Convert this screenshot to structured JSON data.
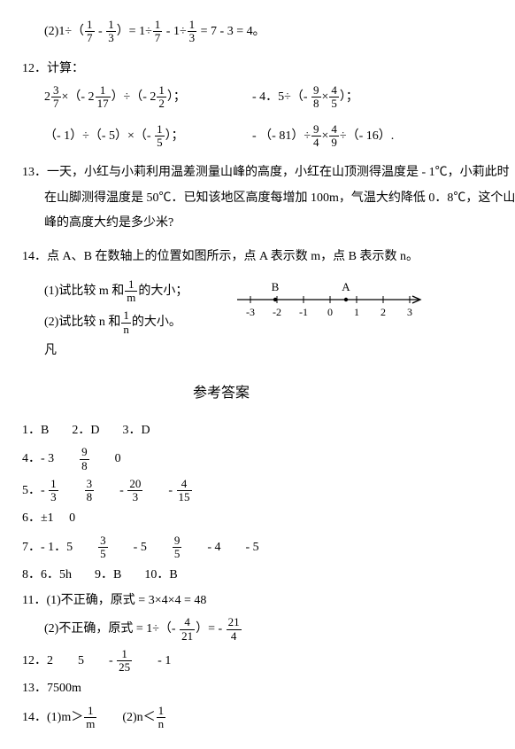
{
  "p2": {
    "prefix": "(2)1÷（",
    "f1n": "1",
    "f1d": "7",
    "mid1": " - ",
    "f2n": "1",
    "f2d": "3",
    "mid2": "）= 1÷",
    "f3n": "1",
    "f3d": "7",
    "mid3": " - 1÷",
    "f4n": "1",
    "f4d": "3",
    "suffix": " = 7 - 3 = 4。"
  },
  "q12": {
    "label": "12．计算："
  },
  "q12a": {
    "a": "2",
    "f1n": "3",
    "f1d": "7",
    "b": "×（- 2",
    "f2n": "1",
    "f2d": "17",
    "c": "）÷（- 2",
    "f3n": "1",
    "f3d": "2",
    "d": "）；",
    "r1": "- 4．5÷（- ",
    "f4n": "9",
    "f4d": "8",
    "r2": "×",
    "f5n": "4",
    "f5d": "5",
    "r3": "）；"
  },
  "q12b": {
    "l": "（- 1）÷（- 5）×（- ",
    "f1n": "1",
    "f1d": "5",
    "l2": "）；",
    "r1": "- （- 81）÷",
    "f2n": "9",
    "f2d": "4",
    "r2": "×",
    "f3n": "4",
    "f3d": "9",
    "r3": "÷（- 16）."
  },
  "q13": {
    "t1": "13．一天，小红与小莉利用温差测量山峰的高度，小红在山顶测得温度是 - 1℃，小莉此时",
    "t2": "在山脚测得温度是 50℃．已知该地区高度每增加 100m，气温大约降低 0．8℃，这个山",
    "t3": "峰的高度大约是多少米?"
  },
  "q14": {
    "t": "14．点 A、B 在数轴上的位置如图所示，点 A 表示数 m，点 B 表示数 n。",
    "s1a": "(1)试比较 m 和",
    "f1n": "1",
    "f1d": "m",
    "s1b": "的大小；",
    "s2a": "(2)试比较 n 和",
    "f2n": "1",
    "f2d": "n",
    "s2b": "的大小。",
    "s3": "凡"
  },
  "nl": {
    "B": "B",
    "A": "A",
    "ticks": [
      "-3",
      "-2",
      "-1",
      "0",
      "1",
      "2",
      "3"
    ]
  },
  "answers_title": "参考答案",
  "a1": "1．B",
  "a2": "2．D",
  "a3": "3．D",
  "a4": {
    "p": "4．- 3",
    "f1n": "9",
    "f1d": "8",
    "v": "0"
  },
  "a5": {
    "p": "5．- ",
    "f1n": "1",
    "f1d": "3",
    "f2n": "3",
    "f2d": "8",
    "m": "- ",
    "f3n": "20",
    "f3d": "3",
    "m2": "- ",
    "f4n": "4",
    "f4d": "15"
  },
  "a6": "6．±1     0",
  "a7": {
    "p": "7．- 1．5",
    "f1n": "3",
    "f1d": "5",
    "v1": "- 5",
    "f2n": "9",
    "f2d": "5",
    "v2": "- 4",
    "v3": "- 5"
  },
  "a8": "8．6．5h",
  "a9": "9．B",
  "a10": "10．B",
  "a11a": "11．(1)不正确，原式 = 3×4×4 = 48",
  "a11b": {
    "p": "(2)不正确，原式 = 1÷（- ",
    "f1n": "4",
    "f1d": "21",
    "m": "）= - ",
    "f2n": "21",
    "f2d": "4"
  },
  "a12": {
    "p": "12．2",
    "v1": "5",
    "m": "- ",
    "f1n": "1",
    "f1d": "25",
    "v2": "- 1"
  },
  "a13": "13．7500m",
  "a14": {
    "p": "14．(1)m＞",
    "f1n": "1",
    "f1d": "m",
    "m": "(2)n＜",
    "f2n": "1",
    "f2d": "n"
  }
}
